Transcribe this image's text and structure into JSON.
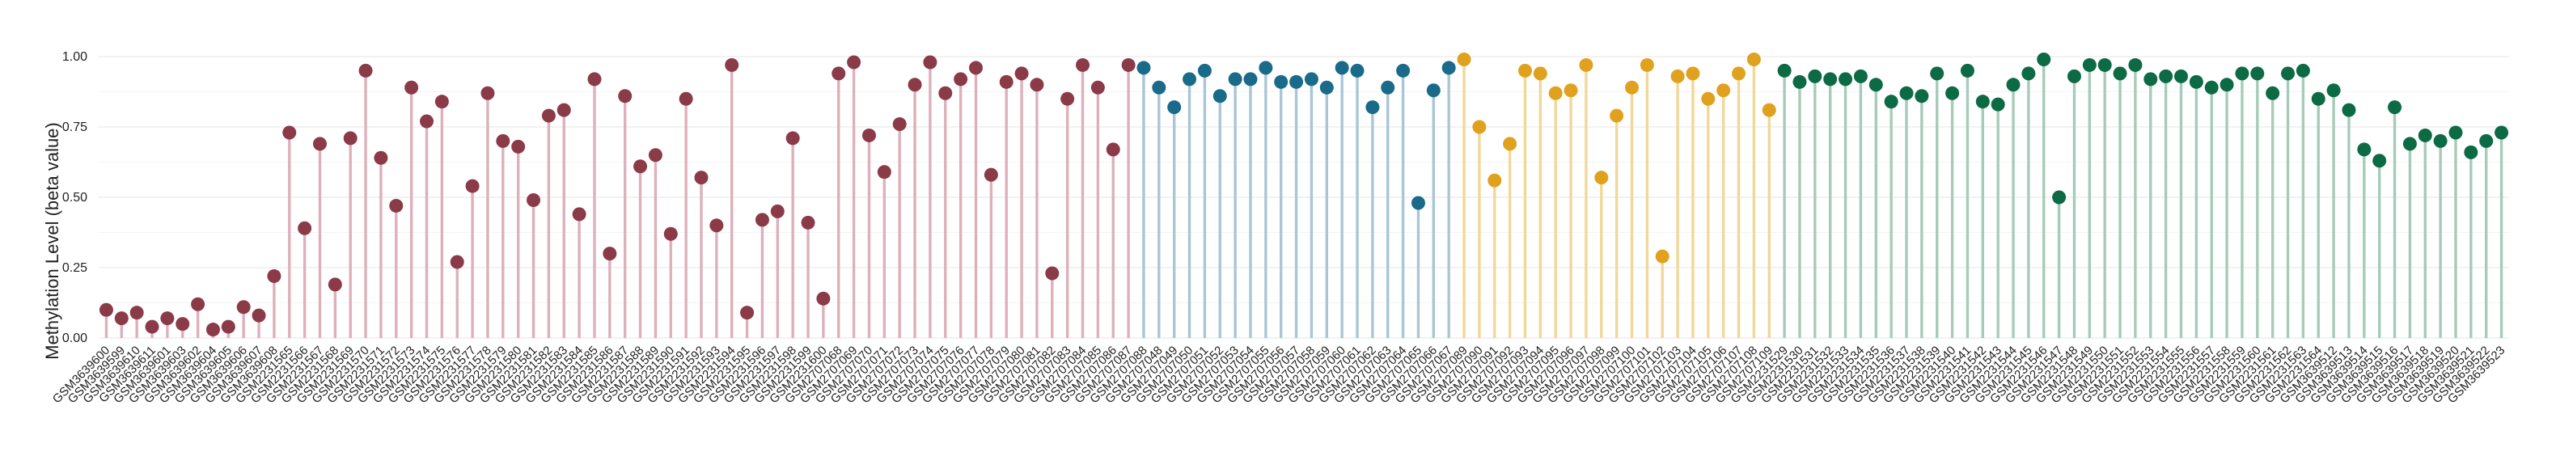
{
  "chart_data": {
    "type": "lollipop",
    "title": "",
    "xlabel": "",
    "ylabel": "Methylation Level (beta value)",
    "ylim": [
      0,
      1
    ],
    "yticks": [
      "0.00",
      "0.25",
      "0.50",
      "0.75",
      "1.00"
    ],
    "grid": true,
    "legend": "none",
    "groups": [
      {
        "color": "#8B3A48",
        "stem_color": "#DDB0BB",
        "x": [
          "GSM3639600",
          "GSM3639599",
          "GSM3639610",
          "GSM3639611",
          "GSM3639601",
          "GSM3639603",
          "GSM3639602",
          "GSM3639604",
          "GSM3639605",
          "GSM3639606",
          "GSM3639607",
          "GSM3639608",
          "GSM2231565",
          "GSM2231566",
          "GSM2231567",
          "GSM2231568",
          "GSM2231569",
          "GSM2231570",
          "GSM2231571",
          "GSM2231572",
          "GSM2231573",
          "GSM2231574",
          "GSM2231575",
          "GSM2231576",
          "GSM2231577",
          "GSM2231578",
          "GSM2231579",
          "GSM2231580",
          "GSM2231581",
          "GSM2231582",
          "GSM2231583",
          "GSM2231584",
          "GSM2231585",
          "GSM2231586",
          "GSM2231587",
          "GSM2231588",
          "GSM2231589",
          "GSM2231590",
          "GSM2231591",
          "GSM2231592",
          "GSM2231593",
          "GSM2231594",
          "GSM2231595",
          "GSM2231596",
          "GSM2231597",
          "GSM2231598",
          "GSM2231599",
          "GSM2231600",
          "GSM2707068",
          "GSM2707069",
          "GSM2707070",
          "GSM2707071",
          "GSM2707072",
          "GSM2707073",
          "GSM2707074",
          "GSM2707075",
          "GSM2707076",
          "GSM2707077",
          "GSM2707078",
          "GSM2707079",
          "GSM2707080",
          "GSM2707081",
          "GSM2707082",
          "GSM2707083",
          "GSM2707084",
          "GSM2707085",
          "GSM2707086",
          "GSM2707087"
        ],
        "values": [
          0.1,
          0.07,
          0.09,
          0.04,
          0.07,
          0.05,
          0.12,
          0.03,
          0.04,
          0.11,
          0.08,
          0.22,
          0.73,
          0.39,
          0.69,
          0.19,
          0.71,
          0.95,
          0.64,
          0.47,
          0.89,
          0.77,
          0.84,
          0.27,
          0.54,
          0.87,
          0.7,
          0.68,
          0.49,
          0.79,
          0.81,
          0.44,
          0.92,
          0.3,
          0.86,
          0.61,
          0.65,
          0.37,
          0.85,
          0.57,
          0.4,
          0.97,
          0.09,
          0.42,
          0.45,
          0.71,
          0.41,
          0.14,
          0.94,
          0.98,
          0.72,
          0.59,
          0.76,
          0.9,
          0.98,
          0.87,
          0.92,
          0.96,
          0.58,
          0.91,
          0.94,
          0.9,
          0.23,
          0.85,
          0.97,
          0.89,
          0.67,
          0.97
        ]
      },
      {
        "color": "#1A6A8A",
        "stem_color": "#A9C6D6",
        "x": [
          "GSM2707088",
          "GSM2707048",
          "GSM2707049",
          "GSM2707050",
          "GSM2707051",
          "GSM2707052",
          "GSM2707053",
          "GSM2707054",
          "GSM2707055",
          "GSM2707056",
          "GSM2707057",
          "GSM2707058",
          "GSM2707059",
          "GSM2707060",
          "GSM2707061",
          "GSM2707062",
          "GSM2707063",
          "GSM2707064",
          "GSM2707065",
          "GSM2707066",
          "GSM2707067"
        ],
        "values": [
          0.96,
          0.89,
          0.82,
          0.92,
          0.95,
          0.86,
          0.92,
          0.92,
          0.96,
          0.91,
          0.91,
          0.92,
          0.89,
          0.96,
          0.95,
          0.82,
          0.89,
          0.95,
          0.48,
          0.88,
          0.96
        ]
      },
      {
        "color": "#E0A21E",
        "stem_color": "#F1D898",
        "x": [
          "GSM2707089",
          "GSM2707090",
          "GSM2707091",
          "GSM2707092",
          "GSM2707093",
          "GSM2707094",
          "GSM2707095",
          "GSM2707096",
          "GSM2707097",
          "GSM2707098",
          "GSM2707099",
          "GSM2707100",
          "GSM2707101",
          "GSM2707102",
          "GSM2707103",
          "GSM2707104",
          "GSM2707105",
          "GSM2707106",
          "GSM2707107",
          "GSM2707108",
          "GSM2707109"
        ],
        "values": [
          0.99,
          0.75,
          0.56,
          0.69,
          0.95,
          0.94,
          0.87,
          0.88,
          0.97,
          0.57,
          0.79,
          0.89,
          0.97,
          0.29,
          0.93,
          0.94,
          0.85,
          0.88,
          0.94,
          0.99,
          0.81
        ]
      },
      {
        "color": "#0C6A45",
        "stem_color": "#A6CBBA",
        "x": [
          "GSM2231529",
          "GSM2231530",
          "GSM2231531",
          "GSM2231532",
          "GSM2231533",
          "GSM2231534",
          "GSM2231535",
          "GSM2231536",
          "GSM2231537",
          "GSM2231538",
          "GSM2231539",
          "GSM2231540",
          "GSM2231541",
          "GSM2231542",
          "GSM2231543",
          "GSM2231544",
          "GSM2231545",
          "GSM2231546",
          "GSM2231547",
          "GSM2231548",
          "GSM2231549",
          "GSM2231550",
          "GSM2231551",
          "GSM2231552",
          "GSM2231553",
          "GSM2231554",
          "GSM2231555",
          "GSM2231556",
          "GSM2231557",
          "GSM2231558",
          "GSM2231559",
          "GSM2231560",
          "GSM2231561",
          "GSM2231562",
          "GSM2231563",
          "GSM2231564",
          "GSM3639512",
          "GSM3639513",
          "GSM3639514",
          "GSM3639515",
          "GSM3639516",
          "GSM3639517",
          "GSM3639518",
          "GSM3639519",
          "GSM3639520",
          "GSM3639521",
          "GSM3639522",
          "GSM3639523"
        ],
        "values": [
          0.95,
          0.91,
          0.93,
          0.92,
          0.92,
          0.93,
          0.9,
          0.84,
          0.87,
          0.86,
          0.94,
          0.87,
          0.95,
          0.84,
          0.83,
          0.9,
          0.94,
          0.99,
          0.5,
          0.93,
          0.97,
          0.97,
          0.94,
          0.97,
          0.92,
          0.93,
          0.93,
          0.91,
          0.89,
          0.9,
          0.94,
          0.94,
          0.87,
          0.94,
          0.95,
          0.85,
          0.88,
          0.81,
          0.67,
          0.63,
          0.82,
          0.69,
          0.72,
          0.7,
          0.73,
          0.66,
          0.7,
          0.73
        ]
      }
    ]
  }
}
